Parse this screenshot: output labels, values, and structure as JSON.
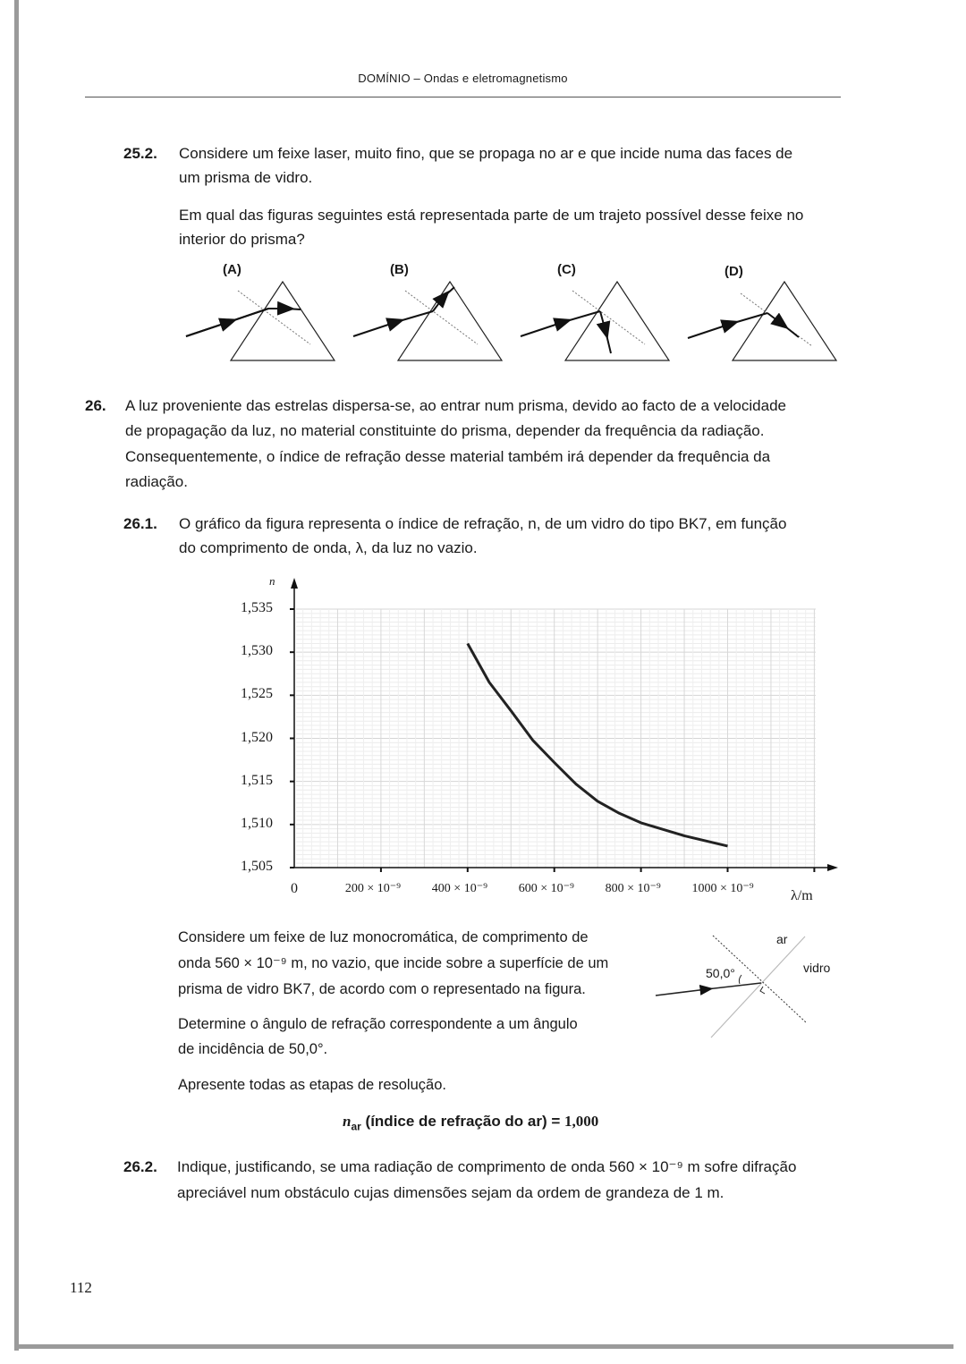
{
  "header": {
    "title": "DOMÍNIO – Ondas e eletromagnetismo"
  },
  "q25_2": {
    "number": "25.2.",
    "line1": "Considere um feixe laser, muito fino, que se propaga no ar e que incide numa das faces de",
    "line2": "um prisma de vidro.",
    "line3": "Em qual das figuras seguintes está representada parte de um trajeto possível desse feixe no",
    "line4": "interior do prisma?",
    "options": [
      "(A)",
      "(B)",
      "(C)",
      "(D)"
    ]
  },
  "q26": {
    "number": "26.",
    "lines": [
      "A luz proveniente das estrelas dispersa-se, ao entrar num prisma, devido ao facto de a velocidade",
      "de propagação da luz, no material constituinte do prisma, depender da frequência da radiação.",
      "Consequentemente, o índice de refração desse material também irá depender da frequência da",
      "radiação."
    ]
  },
  "q26_1": {
    "number": "26.1.",
    "line1": "O gráfico da figura representa o índice de refração, n, de um vidro do tipo BK7, em função",
    "line2": "do comprimento de onda, λ, da luz no vazio.",
    "para1": [
      "Considere um feixe de luz monocromática, de comprimento de",
      "onda 560 × 10⁻⁹ m, no vazio, que incide sobre a superfície de um",
      "prisma de vidro BK7, de acordo com o representado na figura."
    ],
    "para2": [
      "Determine o ângulo de refração correspondente a um ângulo",
      "de incidência de 50,0°."
    ],
    "para3": "Apresente todas as etapas de resolução.",
    "n_ar_symbol": "n",
    "n_ar_sub": "ar",
    "n_ar_text": " (índice de refração do ar) = ",
    "n_ar_value": "1,000",
    "figure": {
      "angle_label": "50,0°",
      "medium1": "ar",
      "medium2": "vidro"
    }
  },
  "q26_2": {
    "number": "26.2.",
    "line1": "Indique, justificando, se uma radiação de comprimento de onda 560 × 10⁻⁹ m sofre difração",
    "line2": "apreciável num obstáculo cujas dimensões sejam da ordem de grandeza de 1 m."
  },
  "chart_data": {
    "type": "line",
    "title": "",
    "xlabel": "λ/m",
    "ylabel": "n",
    "xlim": [
      0,
      1200
    ],
    "ylim": [
      1.505,
      1.535
    ],
    "grid": true,
    "x_tick_labels": [
      "0",
      "200 × 10⁻⁹",
      "400 × 10⁻⁹",
      "600 × 10⁻⁹",
      "800 × 10⁻⁹",
      "1000 × 10⁻⁹"
    ],
    "y_tick_labels": [
      "1,535",
      "1,530",
      "1,525",
      "1,520",
      "1,515",
      "1,510",
      "1,505"
    ],
    "x_unit_note": "x values in nm (× 10⁻⁹ m)",
    "x": [
      400,
      450,
      500,
      550,
      600,
      650,
      700,
      750,
      800,
      900,
      1000
    ],
    "y": [
      1.531,
      1.5265,
      1.5232,
      1.5198,
      1.5172,
      1.5147,
      1.5127,
      1.5113,
      1.5102,
      1.5087,
      1.5075
    ]
  },
  "footer": {
    "page_number": "112"
  }
}
